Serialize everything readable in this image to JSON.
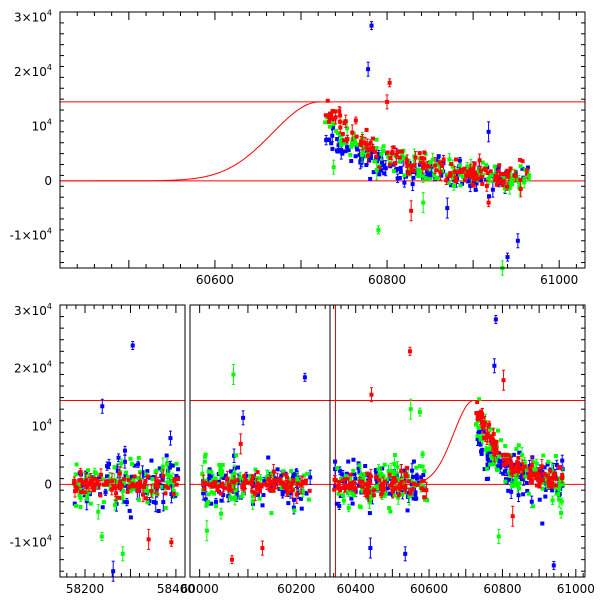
{
  "chart_data": [
    {
      "type": "scatter",
      "panel": "top",
      "title": "",
      "xlabel": "",
      "ylabel": "",
      "xlim": [
        60420,
        61030
      ],
      "ylim": [
        -16000,
        31000
      ],
      "xticks": [
        {
          "value": 60600,
          "label": "60600"
        },
        {
          "value": 60800,
          "label": "60800"
        },
        {
          "value": 61000,
          "label": "61000"
        }
      ],
      "yticks": [
        {
          "value": 30000,
          "base": "3×10",
          "exp": "4"
        },
        {
          "value": 20000,
          "base": "2×10",
          "exp": "4"
        },
        {
          "value": 10000,
          "base": "10",
          "exp": "4"
        },
        {
          "value": 0,
          "base": "0",
          "exp": ""
        },
        {
          "value": -10000,
          "base": "-1×10",
          "exp": "4"
        }
      ],
      "hlines": [
        14500,
        0
      ],
      "model_curve": {
        "peak_x": 60722,
        "peak_y": 14500,
        "rise_sigma": 55,
        "decay_end_x": 60960
      },
      "series": [
        {
          "name": "blue",
          "color": "#0000ff",
          "x_range": [
            60728,
            60965
          ],
          "start_level": 8000
        },
        {
          "name": "green",
          "color": "#00ff00",
          "x_range": [
            60728,
            60965
          ],
          "start_level": 12500
        },
        {
          "name": "red",
          "color": "#ff0000",
          "x_range": [
            60728,
            60965
          ],
          "start_level": 14000
        }
      ],
      "outliers": [
        {
          "series": "blue",
          "x": 60782,
          "y": 28500
        },
        {
          "series": "blue",
          "x": 60778,
          "y": 20500
        },
        {
          "series": "blue",
          "x": 60918,
          "y": 9000
        },
        {
          "series": "blue",
          "x": 60940,
          "y": -14000
        },
        {
          "series": "blue",
          "x": 60952,
          "y": -11000
        },
        {
          "series": "blue",
          "x": 60870,
          "y": -5000
        },
        {
          "series": "red",
          "x": 60803,
          "y": 18000
        },
        {
          "series": "red",
          "x": 60800,
          "y": 14500
        },
        {
          "series": "red",
          "x": 60828,
          "y": -5500
        },
        {
          "series": "red",
          "x": 60918,
          "y": -4000
        },
        {
          "series": "green",
          "x": 60738,
          "y": 2500
        },
        {
          "series": "green",
          "x": 60788,
          "y": 2000
        },
        {
          "series": "green",
          "x": 60790,
          "y": -9000
        },
        {
          "series": "green",
          "x": 60934,
          "y": -16000
        },
        {
          "series": "green",
          "x": 60842,
          "y": -4000
        },
        {
          "series": "green",
          "x": 60965,
          "y": 1000
        }
      ]
    },
    {
      "type": "scatter",
      "panel": "bottom",
      "title": "",
      "xlabel": "",
      "ylabel": "",
      "ylim": [
        -16000,
        31000
      ],
      "segments": [
        {
          "xlim": [
            58145,
            58420
          ],
          "xticks": [
            {
              "value": 58200,
              "label": "58200"
            },
            {
              "value": 58400,
              "label": "58400"
            }
          ]
        },
        {
          "xlim": [
            59980,
            60270
          ],
          "xticks": [
            {
              "value": 60000,
              "label": "60000"
            },
            {
              "value": 60200,
              "label": "60200"
            }
          ]
        },
        {
          "xlim": [
            60330,
            61025
          ],
          "xticks": [
            {
              "value": 60400,
              "label": "60400"
            },
            {
              "value": 60600,
              "label": "60600"
            },
            {
              "value": 60800,
              "label": "60800"
            },
            {
              "value": 61000,
              "label": "61000"
            }
          ]
        }
      ],
      "yticks": [
        {
          "value": 30000,
          "base": "3×10",
          "exp": "4"
        },
        {
          "value": 20000,
          "base": "2×10",
          "exp": "4"
        },
        {
          "value": 10000,
          "base": "10",
          "exp": "4"
        },
        {
          "value": 0,
          "base": "0",
          "exp": ""
        },
        {
          "value": -10000,
          "base": "-1×10",
          "exp": "4"
        }
      ],
      "hlines": [
        14500,
        0
      ],
      "vline_x": 60345,
      "data_ranges": [
        {
          "segment": 0,
          "x_range": [
            58175,
            58405
          ],
          "level": 0
        },
        {
          "segment": 1,
          "x_range": [
            60005,
            60230
          ],
          "level": 0
        },
        {
          "segment": 2,
          "x_range": [
            60340,
            60595
          ],
          "level": 0
        },
        {
          "segment": 2,
          "x_range": [
            60728,
            60965
          ],
          "level": "decay"
        }
      ],
      "model_curve": {
        "peak_x": 60722,
        "peak_y": 14500,
        "rise_sigma": 55,
        "decay_end_x": 60960,
        "x_start": 60590
      },
      "outliers": [
        {
          "series": "blue",
          "seg": 0,
          "x": 58305,
          "y": 24000
        },
        {
          "series": "blue",
          "seg": 0,
          "x": 58238,
          "y": 13500
        },
        {
          "series": "blue",
          "seg": 0,
          "x": 58262,
          "y": -15000
        },
        {
          "series": "green",
          "seg": 0,
          "x": 58237,
          "y": -9000
        },
        {
          "series": "green",
          "seg": 0,
          "x": 58283,
          "y": -12000
        },
        {
          "series": "red",
          "seg": 0,
          "x": 58340,
          "y": -9500
        },
        {
          "series": "red",
          "seg": 0,
          "x": 58390,
          "y": -10000
        },
        {
          "series": "blue",
          "seg": 0,
          "x": 58388,
          "y": 8000
        },
        {
          "series": "green",
          "seg": 1,
          "x": 60070,
          "y": 19000
        },
        {
          "series": "blue",
          "seg": 1,
          "x": 60218,
          "y": 18500
        },
        {
          "series": "blue",
          "seg": 1,
          "x": 60090,
          "y": 11500
        },
        {
          "series": "red",
          "seg": 1,
          "x": 60085,
          "y": 7000
        },
        {
          "series": "red",
          "seg": 1,
          "x": 60067,
          "y": -13000
        },
        {
          "series": "red",
          "seg": 1,
          "x": 60130,
          "y": -11000
        },
        {
          "series": "green",
          "seg": 1,
          "x": 60015,
          "y": -8000
        },
        {
          "series": "red",
          "seg": 2,
          "x": 60548,
          "y": 23000
        },
        {
          "series": "red",
          "seg": 2,
          "x": 60443,
          "y": 15500
        },
        {
          "series": "green",
          "seg": 2,
          "x": 60550,
          "y": 13000
        },
        {
          "series": "green",
          "seg": 2,
          "x": 60575,
          "y": 12500
        },
        {
          "series": "blue",
          "seg": 2,
          "x": 60535,
          "y": -12000
        },
        {
          "series": "blue",
          "seg": 2,
          "x": 60440,
          "y": -11000
        },
        {
          "series": "blue",
          "seg": 2,
          "x": 60782,
          "y": 28500
        },
        {
          "series": "blue",
          "seg": 2,
          "x": 60778,
          "y": 20500
        },
        {
          "series": "red",
          "seg": 2,
          "x": 60803,
          "y": 18000
        },
        {
          "series": "blue",
          "seg": 2,
          "x": 60940,
          "y": -14000
        },
        {
          "series": "green",
          "seg": 2,
          "x": 60790,
          "y": -9000
        },
        {
          "series": "red",
          "seg": 2,
          "x": 60828,
          "y": -5500
        }
      ]
    }
  ],
  "colors": {
    "blue": "#0000ff",
    "green": "#00ff00",
    "red": "#ff0000",
    "model": "#ff0000",
    "axis": "#000000"
  }
}
